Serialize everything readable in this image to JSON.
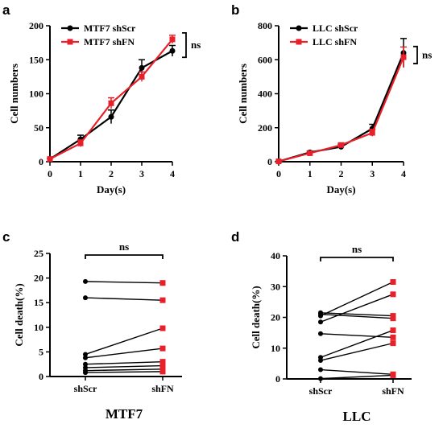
{
  "colors": {
    "scr": "#000000",
    "fn": "#e8202a"
  },
  "panels": {
    "a": {
      "letter": "a",
      "ns": "ns"
    },
    "b": {
      "letter": "b",
      "ns": "ns"
    },
    "c": {
      "letter": "c",
      "ns": "ns",
      "cell_line": "MTF7"
    },
    "d": {
      "letter": "d",
      "ns": "ns",
      "cell_line": "LLC"
    }
  },
  "chart_data": [
    {
      "type": "line",
      "title": "",
      "xlabel": "Day(s)",
      "ylabel": "Cell numbers",
      "x": [
        0,
        1,
        2,
        3,
        4
      ],
      "xlim": [
        0,
        4
      ],
      "ylim": [
        0,
        200
      ],
      "yticks": [
        0,
        50,
        100,
        150,
        200
      ],
      "grid": false,
      "legend_position": "top-left",
      "series": [
        {
          "name": "MTF7 shScr",
          "color": "#000000",
          "marker": "circle",
          "values": [
            4,
            33,
            66,
            138,
            163
          ],
          "errors": [
            1,
            6,
            10,
            12,
            8
          ]
        },
        {
          "name": "MTF7 shFN",
          "color": "#e8202a",
          "marker": "square",
          "values": [
            4,
            27,
            86,
            125,
            180
          ],
          "errors": [
            1,
            5,
            8,
            7,
            6
          ]
        }
      ],
      "annotation": "ns"
    },
    {
      "type": "line",
      "title": "",
      "xlabel": "Day(s)",
      "ylabel": "Cell numbers",
      "x": [
        0,
        1,
        2,
        3,
        4
      ],
      "xlim": [
        0,
        4
      ],
      "ylim": [
        0,
        800
      ],
      "yticks": [
        0,
        200,
        400,
        600,
        800
      ],
      "grid": false,
      "legend_position": "top-left",
      "series": [
        {
          "name": "LLC shScr",
          "color": "#000000",
          "marker": "circle",
          "values": [
            2,
            55,
            88,
            195,
            640
          ],
          "errors": [
            2,
            8,
            15,
            25,
            85
          ]
        },
        {
          "name": "LLC shFN",
          "color": "#e8202a",
          "marker": "square",
          "values": [
            2,
            50,
            98,
            170,
            615
          ],
          "errors": [
            2,
            6,
            12,
            20,
            60
          ]
        }
      ],
      "annotation": "ns"
    },
    {
      "type": "scatter",
      "title": "",
      "xlabel": "MTF7",
      "ylabel": "Cell death(%)",
      "categories": [
        "shScr",
        "shFN"
      ],
      "ylim": [
        0,
        25
      ],
      "yticks": [
        0,
        5,
        10,
        15,
        20,
        25
      ],
      "grid": false,
      "pairs": [
        [
          19.3,
          19.0
        ],
        [
          16.0,
          15.5
        ],
        [
          4.5,
          9.8
        ],
        [
          3.8,
          5.7
        ],
        [
          2.5,
          3.0
        ],
        [
          1.8,
          2.2
        ],
        [
          1.2,
          1.5
        ],
        [
          0.8,
          1.0
        ]
      ],
      "annotation": "ns"
    },
    {
      "type": "scatter",
      "title": "",
      "xlabel": "LLC",
      "ylabel": "Cell death(%)",
      "categories": [
        "shScr",
        "shFN"
      ],
      "ylim": [
        0,
        40
      ],
      "yticks": [
        0,
        10,
        20,
        30,
        40
      ],
      "grid": false,
      "pairs": [
        [
          21.5,
          20.5
        ],
        [
          21.0,
          19.7
        ],
        [
          20.5,
          31.5
        ],
        [
          18.5,
          27.5
        ],
        [
          14.7,
          13.5
        ],
        [
          7.0,
          15.8
        ],
        [
          6.0,
          11.6
        ],
        [
          3.0,
          1.5
        ],
        [
          0.1,
          1.2
        ]
      ],
      "annotation": "ns"
    }
  ]
}
